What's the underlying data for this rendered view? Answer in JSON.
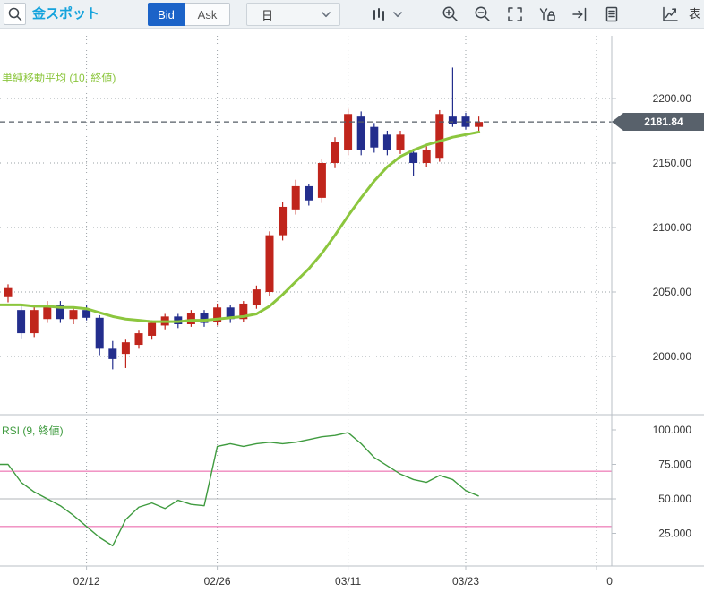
{
  "toolbar": {
    "symbol": "金スポット",
    "bid_label": "Bid",
    "ask_label": "Ask",
    "timeframe": "日",
    "display_label": "表",
    "icons": [
      "search-icon",
      "candlestick-icon",
      "chevron-down-icon",
      "zoom-in-icon",
      "zoom-out-icon",
      "fit-screen-icon",
      "y-axis-lock-icon",
      "go-to-latest-icon",
      "document-icon",
      "chart-arrow-icon"
    ]
  },
  "main_chart": {
    "sma_label": "単純移動平均 (10, 終値)",
    "current_price": "2181.84"
  },
  "rsi_pane": {
    "label": "RSI (9, 終値)"
  },
  "chart_data": {
    "type": "candlestick",
    "symbol": "金スポット",
    "price_source": "Bid",
    "interval": "日",
    "price_axis": {
      "ticks": [
        2200,
        2150,
        2100,
        2050,
        2000
      ],
      "labels": [
        "2200.00",
        "2150.00",
        "2100.00",
        "2050.00",
        "2000.00"
      ],
      "current_price": 2181.84,
      "range": [
        1955,
        2254
      ]
    },
    "rsi_axis": {
      "ticks": [
        100,
        75,
        50,
        25
      ],
      "labels": [
        "100.000",
        "75.000",
        "50.000",
        "25.000"
      ],
      "overbought": 70,
      "oversold": 30,
      "mid": 50,
      "range": [
        0,
        110
      ]
    },
    "x_axis": {
      "labels": [
        {
          "label": "02/12",
          "index": 6
        },
        {
          "label": "02/26",
          "index": 16
        },
        {
          "label": "03/11",
          "index": 26
        },
        {
          "label": "03/23",
          "index": 35
        },
        {
          "label": "0",
          "index": 46
        }
      ],
      "grid_indices": [
        6,
        16,
        26,
        35,
        45
      ]
    },
    "candles": [
      [
        2046,
        2056,
        2042,
        2053
      ],
      [
        2036,
        2040,
        2014,
        2018
      ],
      [
        2018,
        2040,
        2015,
        2036
      ],
      [
        2029,
        2043,
        2026,
        2040
      ],
      [
        2040,
        2043,
        2026,
        2029
      ],
      [
        2029,
        2038,
        2025,
        2036
      ],
      [
        2036,
        2040,
        2028,
        2030
      ],
      [
        2030,
        2032,
        2001,
        2006
      ],
      [
        2006,
        2012,
        1990,
        1998
      ],
      [
        2002,
        2013,
        1991,
        2011
      ],
      [
        2009,
        2020,
        2006,
        2018
      ],
      [
        2016,
        2028,
        2013,
        2026
      ],
      [
        2024,
        2033,
        2021,
        2031
      ],
      [
        2031,
        2033,
        2022,
        2025
      ],
      [
        2025,
        2036,
        2023,
        2034
      ],
      [
        2034,
        2036,
        2023,
        2026
      ],
      [
        2027,
        2041,
        2024,
        2038
      ],
      [
        2038,
        2040,
        2026,
        2029
      ],
      [
        2029,
        2043,
        2027,
        2041
      ],
      [
        2040,
        2055,
        2037,
        2052
      ],
      [
        2050,
        2097,
        2047,
        2094
      ],
      [
        2094,
        2120,
        2090,
        2116
      ],
      [
        2114,
        2137,
        2110,
        2132
      ],
      [
        2132,
        2134,
        2117,
        2121
      ],
      [
        2123,
        2153,
        2119,
        2150
      ],
      [
        2150,
        2170,
        2146,
        2166
      ],
      [
        2160,
        2192,
        2156,
        2188
      ],
      [
        2186,
        2190,
        2156,
        2160
      ],
      [
        2178,
        2181,
        2158,
        2162
      ],
      [
        2172,
        2175,
        2156,
        2160
      ],
      [
        2160,
        2175,
        2157,
        2172
      ],
      [
        2158,
        2161,
        2140,
        2150
      ],
      [
        2150,
        2163,
        2147,
        2160
      ],
      [
        2154,
        2191,
        2151,
        2188
      ],
      [
        2186,
        2224,
        2178,
        2180
      ],
      [
        2186,
        2189,
        2176,
        2178
      ],
      [
        2178,
        2186,
        2175,
        2181.84
      ]
    ],
    "sma10": [
      2040,
      2040,
      2039,
      2039,
      2038,
      2038,
      2037,
      2034,
      2031,
      2029,
      2028,
      2027,
      2027,
      2027,
      2028,
      2028,
      2029,
      2030,
      2031,
      2033,
      2039,
      2048,
      2058,
      2068,
      2080,
      2094,
      2109,
      2123,
      2136,
      2147,
      2155,
      2160,
      2164,
      2167,
      2170,
      2172,
      2174
    ],
    "rsi9": [
      75,
      62,
      55,
      50,
      45,
      38,
      30,
      22,
      16,
      35,
      44,
      47,
      43,
      49,
      46,
      45,
      88,
      90,
      88,
      90,
      91,
      90,
      91,
      93,
      95,
      96,
      98,
      90,
      80,
      74,
      68,
      64,
      62,
      67,
      64,
      56,
      52
    ],
    "colors": {
      "up": "#c0251c",
      "down": "#232e8d",
      "sma": "#8cc63e",
      "rsi": "#3f9b3f",
      "threshold": "#ef87bd",
      "mid_line": "#b0b4b8",
      "grid": "#9aa0a6",
      "price_line": "#555d66",
      "badge": "#58616b",
      "accent_blue": "#1b63c8",
      "title_blue": "#15a3dc"
    }
  }
}
